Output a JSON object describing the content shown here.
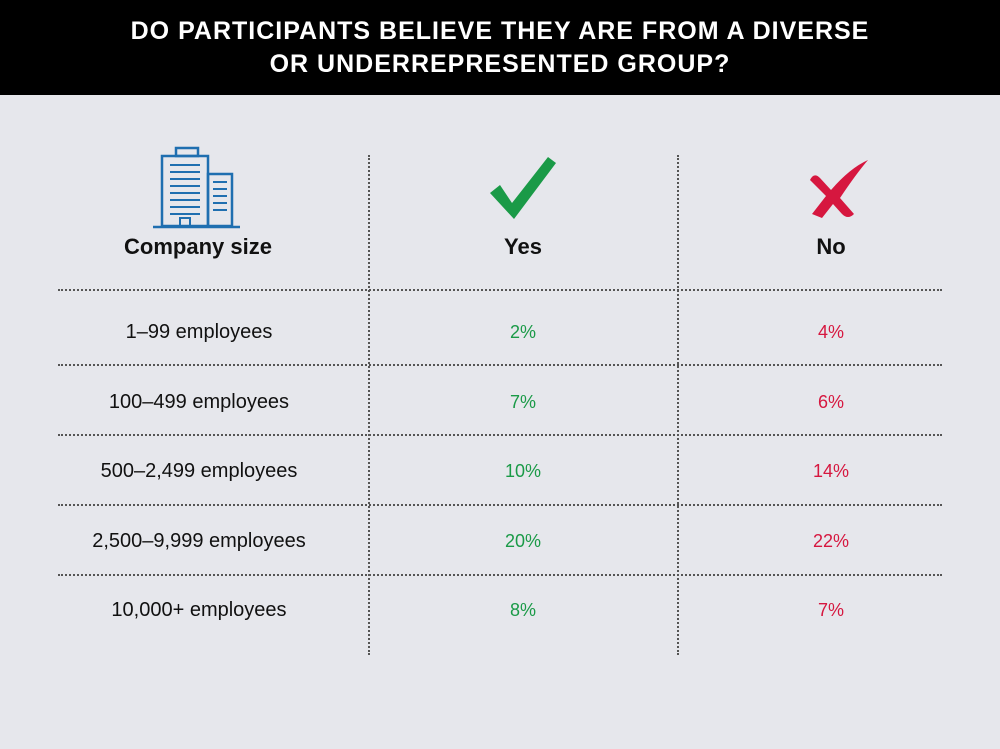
{
  "header": {
    "title_line1": "DO PARTICIPANTS BELIEVE THEY ARE FROM A DIVERSE",
    "title_line2": "OR UNDERREPRESENTED GROUP?"
  },
  "columns": {
    "company_size": "Company size",
    "yes": "Yes",
    "no": "No"
  },
  "icons": {
    "company": "building-icon",
    "yes": "checkmark-icon",
    "no": "x-mark-icon"
  },
  "colors": {
    "header_bg": "#000000",
    "background": "#e6e7ec",
    "yes": "#1a9a47",
    "no": "#d6173f",
    "building": "#1f6fb0"
  },
  "rows": [
    {
      "label": "1–99 employees",
      "yes": "2%",
      "no": "4%"
    },
    {
      "label": "100–499 employees",
      "yes": "7%",
      "no": "6%"
    },
    {
      "label": "500–2,499 employees",
      "yes": "10%",
      "no": "14%"
    },
    {
      "label": "2,500–9,999 employees",
      "yes": "20%",
      "no": "22%"
    },
    {
      "label": "10,000+ employees",
      "yes": "8%",
      "no": "7%"
    }
  ],
  "chart_data": {
    "type": "table",
    "title": "DO PARTICIPANTS BELIEVE THEY ARE FROM A DIVERSE OR UNDERREPRESENTED GROUP?",
    "columns": [
      "Company size",
      "Yes",
      "No"
    ],
    "categories": [
      "1–99 employees",
      "100–499 employees",
      "500–2,499 employees",
      "2,500–9,999 employees",
      "10,000+ employees"
    ],
    "series": [
      {
        "name": "Yes",
        "values": [
          2,
          7,
          10,
          20,
          8
        ]
      },
      {
        "name": "No",
        "values": [
          4,
          6,
          14,
          22,
          7
        ]
      }
    ]
  }
}
